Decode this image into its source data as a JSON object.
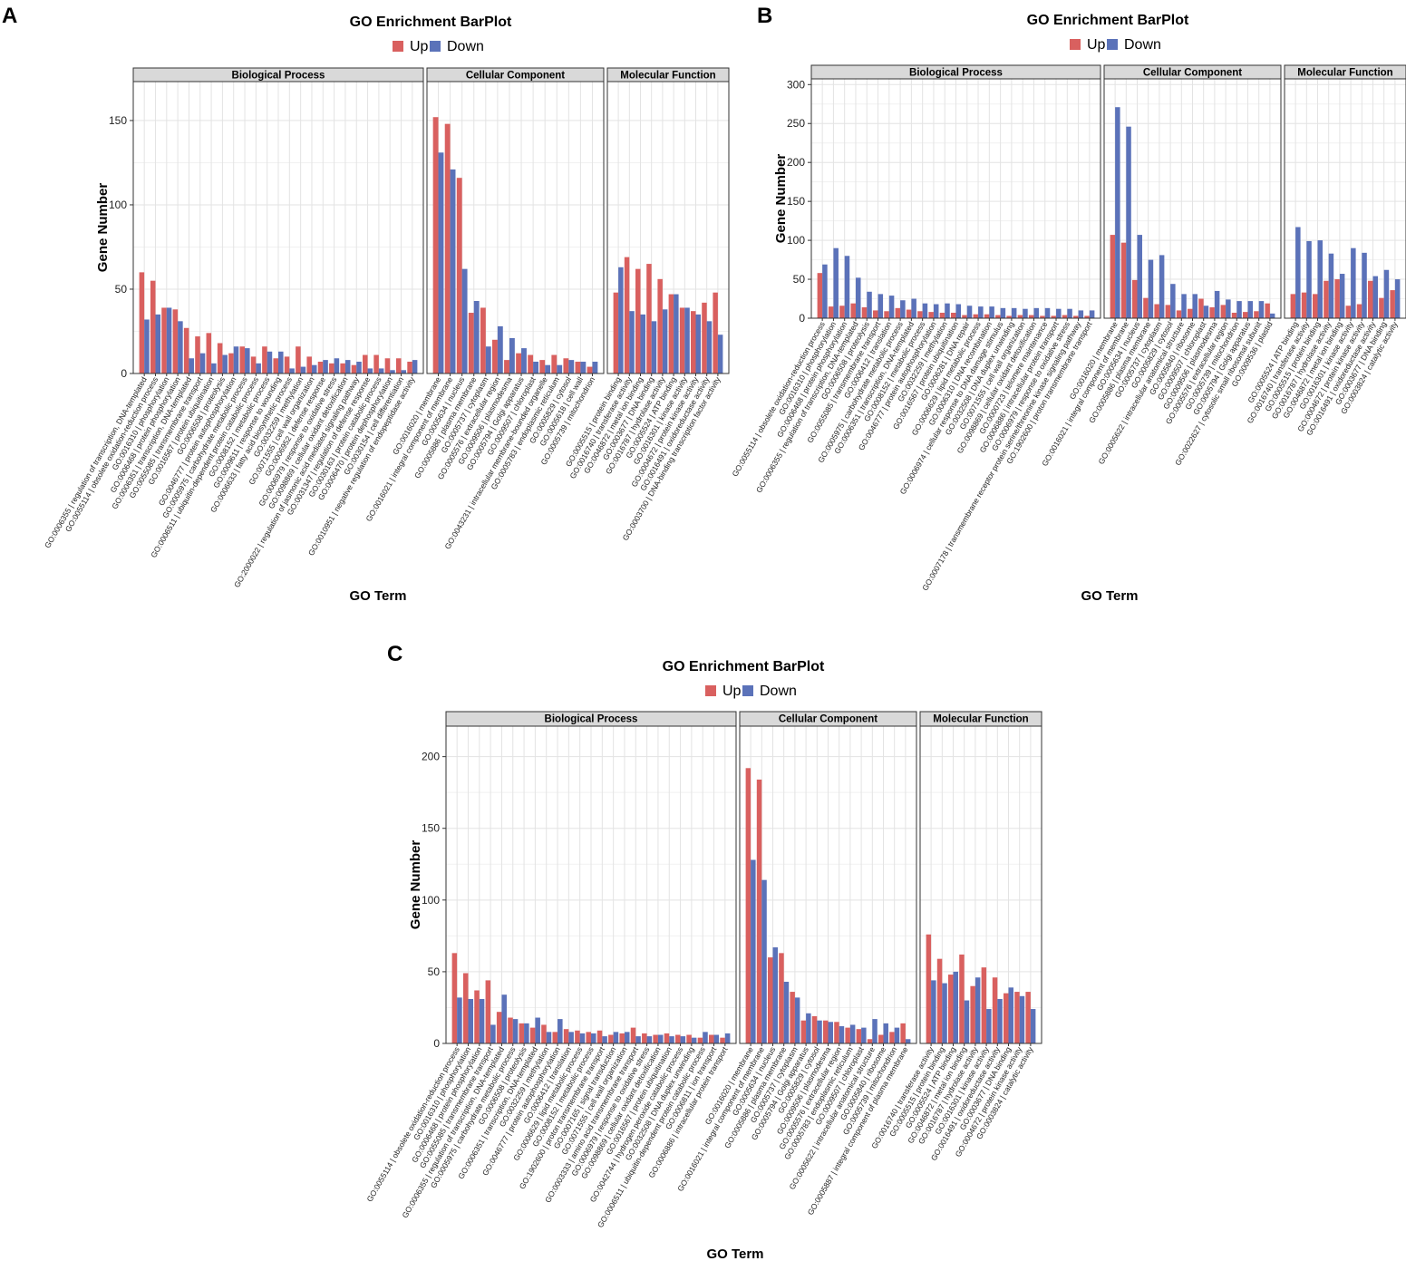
{
  "colors": {
    "up": "#d9605f",
    "down": "#5b72b9"
  },
  "chart_data": [
    {
      "id": "A",
      "letter": "A",
      "type": "bar",
      "title": "GO Enrichment BarPlot",
      "legend": [
        "Up",
        "Down"
      ],
      "xlabel": "GO Term",
      "ylabel": "Gene Number",
      "ylim": [
        0,
        172
      ],
      "yticks": [
        0,
        50,
        100,
        150
      ],
      "panels": [
        {
          "name": "Biological Process",
          "categories": [
            "GO:0006355 | regulation of transcription, DNA-templated",
            "GO:0055114 | obsolete oxidation-reduction process",
            "GO:0016310 | phosphorylation",
            "GO:0006468 | protein phosphorylation",
            "GO:0006351 | transcription, DNA-templated",
            "GO:0055085 | transmembrane transport",
            "GO:0016567 | protein ubiquitination",
            "GO:0006508 | proteolysis",
            "GO:0046777 | protein autophosphorylation",
            "GO:0005975 | carbohydrate metabolic process",
            "GO:0006511 | ubiquitin-dependent protein catabolic process",
            "GO:0008152 | metabolic process",
            "GO:0009611 | response to wounding",
            "GO:0006633 | fatty acid biosynthetic process",
            "GO:0032259 | methylation",
            "GO:0071555 | cell wall organization",
            "GO:0006952 | defense response",
            "GO:0006979 | response to oxidative stress",
            "GO:0098869 | cellular oxidant detoxification",
            "GO:2000022 | regulation of jasmonic acid mediated signaling pathway",
            "GO:0031347 | regulation of defense response",
            "GO:0030163 | protein catabolic process",
            "GO:0006470 | protein dephosphorylation",
            "GO:0030154 | cell differentiation",
            "GO:0010951 | negative regulation of endopeptidase activity"
          ],
          "series": [
            {
              "name": "Up",
              "values": [
                60,
                55,
                39,
                38,
                27,
                22,
                24,
                18,
                12,
                16,
                10,
                16,
                9,
                10,
                16,
                10,
                7,
                6,
                6,
                5,
                11,
                11,
                9,
                9,
                7
              ]
            },
            {
              "name": "Down",
              "values": [
                32,
                35,
                39,
                31,
                9,
                12,
                6,
                11,
                16,
                15,
                6,
                13,
                13,
                3,
                4,
                5,
                8,
                9,
                8,
                7,
                3,
                3,
                2,
                2,
                8
              ]
            }
          ]
        },
        {
          "name": "Cellular Component",
          "categories": [
            "GO:0016020 | membrane",
            "GO:0016021 | integral component of membrane",
            "GO:0005634 | nucleus",
            "GO:0005886 | plasma membrane",
            "GO:0005737 | cytoplasm",
            "GO:0005576 | extracellular region",
            "GO:0009506 | plasmodesma",
            "GO:0005794 | Golgi apparatus",
            "GO:0009507 | chloroplast",
            "GO:0043231 | intracellular membrane-bounded organelle",
            "GO:0005783 | endoplasmic reticulum",
            "GO:0005829 | cytosol",
            "GO:0005618 | cell wall",
            "GO:0005739 | mitochondrion"
          ],
          "series": [
            {
              "name": "Up",
              "values": [
                152,
                148,
                116,
                36,
                39,
                20,
                8,
                12,
                11,
                8,
                11,
                9,
                7,
                4
              ]
            },
            {
              "name": "Down",
              "values": [
                131,
                121,
                62,
                43,
                16,
                28,
                21,
                15,
                7,
                5,
                5,
                8,
                7,
                7
              ]
            }
          ]
        },
        {
          "name": "Molecular Function",
          "categories": [
            "GO:0005515 | protein binding",
            "GO:0016740 | transferase activity",
            "GO:0046872 | metal ion binding",
            "GO:0003677 | DNA binding",
            "GO:0016787 | hydrolase activity",
            "GO:0005524 | ATP binding",
            "GO:0016301 | kinase activity",
            "GO:0004672 | protein kinase activity",
            "GO:0016491 | oxidoreductase activity",
            "GO:0003700 | DNA-binding transcription factor activity"
          ],
          "series": [
            {
              "name": "Up",
              "values": [
                48,
                69,
                62,
                65,
                56,
                47,
                39,
                37,
                42,
                48
              ]
            },
            {
              "name": "Down",
              "values": [
                63,
                37,
                35,
                31,
                38,
                47,
                39,
                35,
                31,
                23
              ]
            }
          ]
        }
      ]
    },
    {
      "id": "B",
      "letter": "B",
      "type": "bar",
      "title": "GO Enrichment BarPlot",
      "legend": [
        "Up",
        "Down"
      ],
      "xlabel": "GO Term",
      "ylabel": "Gene Number",
      "ylim": [
        0,
        305
      ],
      "yticks": [
        0,
        50,
        100,
        150,
        200,
        250,
        300
      ],
      "panels": [
        {
          "name": "Biological Process",
          "categories": [
            "GO:0055114 | obsolete oxidation-reduction process",
            "GO:0016310 | phosphorylation",
            "GO:0006468 | protein phosphorylation",
            "GO:0006355 | regulation of transcription, DNA-templated",
            "GO:0006508 | proteolysis",
            "GO:0055085 | transmembrane transport",
            "GO:0006412 | translation",
            "GO:0005975 | carbohydrate metabolic process",
            "GO:0006351 | transcription, DNA-templated",
            "GO:0008152 | metabolic process",
            "GO:0046777 | protein autophosphorylation",
            "GO:0032259 | methylation",
            "GO:0016567 | protein ubiquitination",
            "GO:0006281 | DNA repair",
            "GO:0006629 | lipid metabolic process",
            "GO:0006310 | DNA recombination",
            "GO:0006974 | cellular response to DNA damage stimulus",
            "GO:0032508 | DNA duplex unwinding",
            "GO:0071555 | cell wall organization",
            "GO:0098869 | cellular oxidant detoxification",
            "GO:0000723 | telomere maintenance",
            "GO:0006886 | intracellular protein transport",
            "GO:0006979 | response to oxidative stress",
            "GO:0007178 | transmembrane receptor protein serine/threonine kinase signaling pathway",
            "GO:1902600 | proton transmembrane transport"
          ],
          "series": [
            {
              "name": "Up",
              "values": [
                58,
                15,
                16,
                19,
                14,
                10,
                9,
                13,
                11,
                9,
                8,
                7,
                7,
                4,
                5,
                5,
                4,
                3,
                4,
                4,
                3,
                3,
                4,
                3,
                3
              ]
            },
            {
              "name": "Down",
              "values": [
                69,
                90,
                80,
                52,
                34,
                31,
                29,
                23,
                25,
                19,
                18,
                19,
                18,
                16,
                15,
                15,
                13,
                13,
                12,
                13,
                13,
                12,
                12,
                10,
                10
              ]
            }
          ]
        },
        {
          "name": "Cellular Component",
          "categories": [
            "GO:0016020 | membrane",
            "GO:0016021 | integral component of membrane",
            "GO:0005634 | nucleus",
            "GO:0005886 | plasma membrane",
            "GO:0005737 | cytoplasm",
            "GO:0005829 | cytosol",
            "GO:0005622 | intracellular anatomical structure",
            "GO:0005840 | ribosome",
            "GO:0009507 | chloroplast",
            "GO:0009506 | plasmodesma",
            "GO:0005576 | extracellular region",
            "GO:0005739 | mitochondrion",
            "GO:0005794 | Golgi apparatus",
            "GO:0022627 | cytosolic small ribosomal subunit",
            "GO:0009536 | plastid"
          ],
          "series": [
            {
              "name": "Up",
              "values": [
                107,
                97,
                49,
                26,
                18,
                17,
                10,
                12,
                25,
                14,
                17,
                7,
                8,
                9,
                19
              ]
            },
            {
              "name": "Down",
              "values": [
                271,
                246,
                107,
                75,
                81,
                44,
                31,
                31,
                16,
                35,
                24,
                22,
                22,
                22,
                6
              ]
            }
          ]
        },
        {
          "name": "Molecular Function",
          "categories": [
            "GO:0005524 | ATP binding",
            "GO:0016740 | transferase activity",
            "GO:0005515 | protein binding",
            "GO:0016787 | hydrolase activity",
            "GO:0046872 | metal ion binding",
            "GO:0016301 | kinase activity",
            "GO:0004672 | protein kinase activity",
            "GO:0016491 | oxidoreductase activity",
            "GO:0003677 | DNA binding",
            "GO:0003824 | catalytic activity"
          ],
          "series": [
            {
              "name": "Up",
              "values": [
                31,
                33,
                31,
                48,
                50,
                16,
                18,
                48,
                26,
                36
              ]
            },
            {
              "name": "Down",
              "values": [
                117,
                99,
                100,
                83,
                57,
                90,
                84,
                54,
                62,
                50
              ]
            }
          ]
        }
      ]
    },
    {
      "id": "C",
      "letter": "C",
      "type": "bar",
      "title": "GO Enrichment BarPlot",
      "legend": [
        "Up",
        "Down"
      ],
      "xlabel": "GO Term",
      "ylabel": "Gene Number",
      "ylim": [
        0,
        220
      ],
      "yticks": [
        0,
        50,
        100,
        150,
        200
      ],
      "panels": [
        {
          "name": "Biological Process",
          "categories": [
            "GO:0055114 | obsolete oxidation-reduction process",
            "GO:0016310 | phosphorylation",
            "GO:0006468 | protein phosphorylation",
            "GO:0055085 | transmembrane transport",
            "GO:0006355 | regulation of transcription, DNA-templated",
            "GO:0005975 | carbohydrate metabolic process",
            "GO:0006508 | proteolysis",
            "GO:0006351 | transcription, DNA-templated",
            "GO:0032259 | methylation",
            "GO:0046777 | protein autophosphorylation",
            "GO:0006412 | translation",
            "GO:0006629 | lipid metabolic process",
            "GO:0008152 | metabolic process",
            "GO:1902600 | proton transmembrane transport",
            "GO:0007165 | signal transduction",
            "GO:0071555 | cell wall organization",
            "GO:0003333 | amino acid transmembrane transport",
            "GO:0006979 | response to oxidative stress",
            "GO:0098869 | cellular oxidant detoxification",
            "GO:0016567 | protein ubiquitination",
            "GO:0042744 | hydrogen peroxide catabolic process",
            "GO:0032508 | DNA duplex unwinding",
            "GO:0006511 | ubiquitin-dependent protein catabolic process",
            "GO:0006811 | ion transport",
            "GO:0006886 | intracellular protein transport"
          ],
          "series": [
            {
              "name": "Up",
              "values": [
                63,
                49,
                37,
                44,
                22,
                18,
                14,
                11,
                13,
                8,
                10,
                9,
                8,
                9,
                6,
                7,
                11,
                7,
                6,
                7,
                6,
                6,
                4,
                6,
                4
              ]
            },
            {
              "name": "Down",
              "values": [
                32,
                31,
                31,
                13,
                34,
                17,
                14,
                18,
                8,
                17,
                8,
                7,
                7,
                5,
                8,
                8,
                5,
                5,
                6,
                5,
                5,
                4,
                8,
                6,
                7
              ]
            }
          ]
        },
        {
          "name": "Cellular Component",
          "categories": [
            "GO:0016020 | membrane",
            "GO:0016021 | integral component of membrane",
            "GO:0005634 | nucleus",
            "GO:0005886 | plasma membrane",
            "GO:0005737 | cytoplasm",
            "GO:0005794 | Golgi apparatus",
            "GO:0005829 | cytosol",
            "GO:0009506 | plasmodesma",
            "GO:0005576 | extracellular region",
            "GO:0005783 | endoplasmic reticulum",
            "GO:0009507 | chloroplast",
            "GO:0005622 | intracellular anatomical structure",
            "GO:0005840 | ribosome",
            "GO:0005739 | mitochondrion",
            "GO:0005887 | integral component of plasma membrane"
          ],
          "series": [
            {
              "name": "Up",
              "values": [
                192,
                184,
                60,
                63,
                36,
                16,
                19,
                16,
                15,
                11,
                10,
                3,
                6,
                8,
                14
              ]
            },
            {
              "name": "Down",
              "values": [
                128,
                114,
                67,
                43,
                32,
                21,
                16,
                15,
                12,
                13,
                11,
                17,
                14,
                11,
                3
              ]
            }
          ]
        },
        {
          "name": "Molecular Function",
          "categories": [
            "GO:0016740 | transferase activity",
            "GO:0005515 | protein binding",
            "GO:0005524 | ATP binding",
            "GO:0046872 | metal ion binding",
            "GO:0016787 | hydrolase activity",
            "GO:0016301 | kinase activity",
            "GO:0016491 | oxidoreductase activity",
            "GO:0003677 | DNA binding",
            "GO:0004672 | protein kinase activity",
            "GO:0003824 | catalytic activity"
          ],
          "series": [
            {
              "name": "Up",
              "values": [
                76,
                59,
                48,
                62,
                40,
                53,
                46,
                35,
                36,
                36
              ]
            },
            {
              "name": "Down",
              "values": [
                44,
                42,
                50,
                30,
                46,
                24,
                31,
                39,
                33,
                24
              ]
            }
          ]
        }
      ]
    }
  ]
}
